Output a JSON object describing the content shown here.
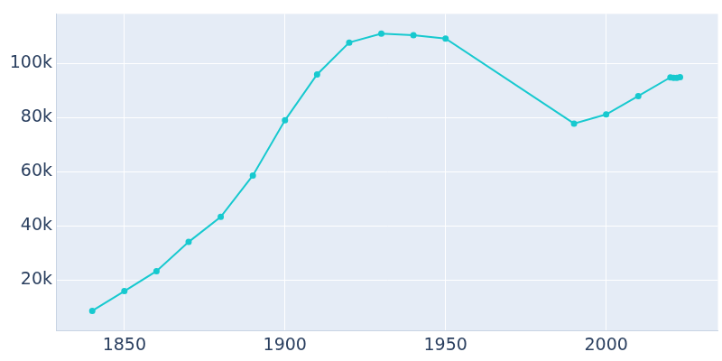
{
  "chart_data": {
    "type": "line",
    "x": [
      1840,
      1850,
      1860,
      1870,
      1880,
      1890,
      1900,
      1910,
      1920,
      1930,
      1940,
      1950,
      1990,
      2000,
      2010,
      2020,
      2021,
      2022,
      2023
    ],
    "values": [
      8500,
      15800,
      23200,
      34000,
      43300,
      58600,
      79000,
      96000,
      107800,
      111100,
      110500,
      109300,
      77800,
      81200,
      88000,
      94900,
      94700,
      94700,
      95000
    ],
    "color": "#17c9cf",
    "marker": "circle",
    "xlim": [
      1828.7,
      2034.8
    ],
    "xticks": [
      1850,
      1900,
      1950,
      2000
    ],
    "ylim": [
      1300,
      118400
    ],
    "yticks": [
      {
        "value": 20000,
        "label": "20k"
      },
      {
        "value": 40000,
        "label": "40k"
      },
      {
        "value": 60000,
        "label": "60k"
      },
      {
        "value": 80000,
        "label": "80k"
      },
      {
        "value": 100000,
        "label": "100k"
      }
    ],
    "grid": true
  }
}
